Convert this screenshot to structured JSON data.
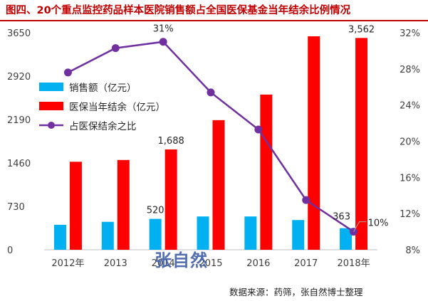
{
  "title": "图四、20个重点监控药品样本医院销售额占全国医保基金当年结余比例情况",
  "source_note": "数据来源：药筛，张自然博士整理",
  "watermark": "张自然",
  "colors": {
    "sales": "#00b0f0",
    "surplus": "#ff0000",
    "ratio": "#7030a0",
    "title": "#c00000"
  },
  "chart_data": {
    "type": "bar",
    "categories": [
      "2012年",
      "2013",
      "2014",
      "2015",
      "2016",
      "2017",
      "2018年"
    ],
    "series": [
      {
        "name": "销售额（亿元）",
        "type": "bar",
        "axis": "left",
        "color": "#00b0f0",
        "values": [
          420,
          470,
          520,
          560,
          560,
          500,
          363
        ]
      },
      {
        "name": "医保当年结余（亿元）",
        "type": "bar",
        "axis": "left",
        "color": "#ff0000",
        "values": [
          1480,
          1510,
          1688,
          2180,
          2610,
          3590,
          3562
        ]
      },
      {
        "name": "占医保结余之比",
        "type": "line",
        "axis": "right",
        "color": "#7030a0",
        "values": [
          27.6,
          30.3,
          31.0,
          25.4,
          21.3,
          13.5,
          10.0
        ]
      }
    ],
    "y_left": {
      "min": 0,
      "max": 3650,
      "ticks": [
        "0",
        "730",
        "1460",
        "2190",
        "2920",
        "3650"
      ]
    },
    "y_right": {
      "min": 8,
      "max": 32,
      "ticks": [
        "8%",
        "12%",
        "16%",
        "20%",
        "24%",
        "28%",
        "32%"
      ]
    },
    "data_labels": [
      {
        "series": 0,
        "index": 2,
        "text": "520"
      },
      {
        "series": 0,
        "index": 6,
        "text": "363"
      },
      {
        "series": 1,
        "index": 2,
        "text": "1,688"
      },
      {
        "series": 1,
        "index": 6,
        "text": "3,562"
      },
      {
        "series": 2,
        "index": 2,
        "text": "31%"
      },
      {
        "series": 2,
        "index": 6,
        "text": "10%"
      }
    ],
    "legend_position": "upper-left",
    "grid": false
  }
}
